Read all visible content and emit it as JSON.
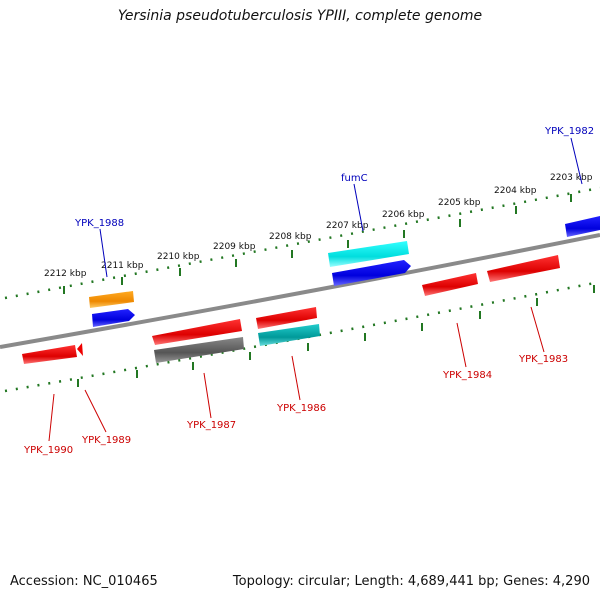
{
  "header": {
    "title": "Yersinia pseudotuberculosis YPIII, complete genome"
  },
  "footer": {
    "accession": "Accession: NC_010465",
    "summary": "Topology: circular; Length: 4,689,441 bp; Genes: 4,290"
  },
  "scale": {
    "ticks": [
      {
        "label": "2212 kbp"
      },
      {
        "label": "2211 kbp"
      },
      {
        "label": "2210 kbp"
      },
      {
        "label": "2209 kbp"
      },
      {
        "label": "2208 kbp"
      },
      {
        "label": "2207 kbp"
      },
      {
        "label": "2206 kbp"
      },
      {
        "label": "2205 kbp"
      },
      {
        "label": "2204 kbp"
      },
      {
        "label": "2203 kbp"
      }
    ]
  },
  "genes": [
    {
      "name": "YPK_1982",
      "strand": "forward",
      "color": "#0000ee"
    },
    {
      "name": "fumC",
      "strand": "forward",
      "color": "#00cccc"
    },
    {
      "name": "YPK_1988",
      "strand": "forward",
      "color": "#ff9900"
    },
    {
      "name": "YPK_1983",
      "strand": "reverse",
      "color": "#ee0000"
    },
    {
      "name": "YPK_1984",
      "strand": "reverse",
      "color": "#ee0000"
    },
    {
      "name": "YPK_1986",
      "strand": "reverse",
      "color": "#00aaaa"
    },
    {
      "name": "YPK_1987",
      "strand": "reverse",
      "color": "#ee0000"
    },
    {
      "name": "YPK_1989",
      "strand": "reverse",
      "color": "#ee0000"
    },
    {
      "name": "YPK_1990",
      "strand": "reverse",
      "color": "#ee0000"
    }
  ],
  "colors": {
    "forward_label": "#0000bb",
    "reverse_label": "#cc0000",
    "tick_green": "#227722",
    "backbone": "#888888",
    "cds_blue": "#0000ee",
    "rna_gray": "#666666"
  }
}
